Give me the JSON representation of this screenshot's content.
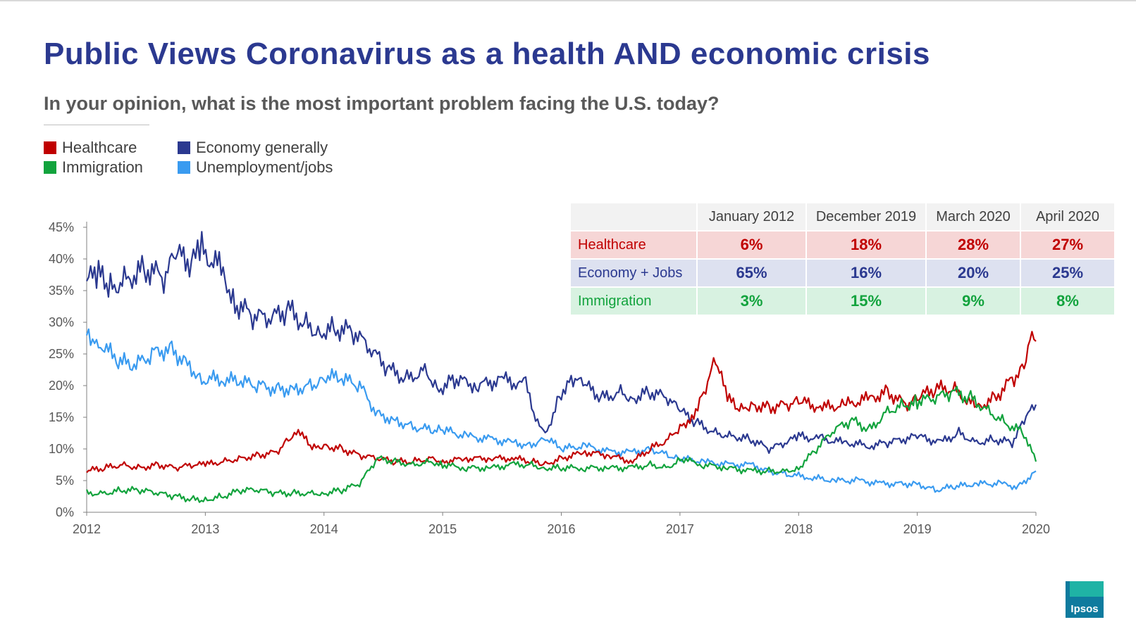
{
  "slide": {
    "title": "Public Views Coronavirus as a health AND economic crisis",
    "subtitle": "In your opinion, what is the most important problem facing the U.S. today?",
    "logo_text": "Ipsos"
  },
  "legend": [
    {
      "label": "Healthcare",
      "color": "#c00000"
    },
    {
      "label": "Economy generally",
      "color": "#2b3990"
    },
    {
      "label": "Immigration",
      "color": "#12a33d"
    },
    {
      "label": "Unemployment/jobs",
      "color": "#3a9bf0"
    }
  ],
  "summary_table": {
    "corner": "",
    "columns": [
      "January 2012",
      "December 2019",
      "March 2020",
      "April 2020"
    ],
    "rows": [
      {
        "label": "Healthcare",
        "values": [
          "6%",
          "18%",
          "28%",
          "27%"
        ]
      },
      {
        "label": "Economy + Jobs",
        "values": [
          "65%",
          "16%",
          "20%",
          "25%"
        ]
      },
      {
        "label": "Immigration",
        "values": [
          "3%",
          "15%",
          "9%",
          "8%"
        ]
      }
    ]
  },
  "chart_data": {
    "type": "line",
    "title": "",
    "xlabel": "",
    "ylabel": "",
    "ylim": [
      0,
      45
    ],
    "y_ticks": [
      0,
      5,
      10,
      15,
      20,
      25,
      30,
      35,
      40,
      45
    ],
    "y_tick_labels": [
      "0%",
      "5%",
      "10%",
      "15%",
      "20%",
      "25%",
      "30%",
      "35%",
      "40%",
      "45%"
    ],
    "x_ticks": [
      2012,
      2013,
      2014,
      2015,
      2016,
      2017,
      2018,
      2019,
      2020
    ],
    "x_tick_labels": [
      "2012",
      "2013",
      "2014",
      "2015",
      "2016",
      "2017",
      "2018",
      "2019",
      "2020"
    ],
    "xlim": [
      2012,
      2020
    ],
    "series": [
      {
        "name": "Economy generally",
        "color": "#2b3990",
        "x": [
          2012.0,
          2012.1,
          2012.2,
          2012.35,
          2012.5,
          2012.65,
          2012.75,
          2012.9,
          2012.97,
          2013.15,
          2013.25,
          2013.4,
          2013.55,
          2013.7,
          2013.85,
          2013.95,
          2014.1,
          2014.25,
          2014.4,
          2014.55,
          2014.7,
          2014.85,
          2014.97,
          2015.1,
          2015.3,
          2015.5,
          2015.7,
          2015.8,
          2015.88,
          2016.0,
          2016.1,
          2016.2,
          2016.35,
          2016.5,
          2016.6,
          2016.75,
          2016.9,
          2017.0,
          2017.15,
          2017.3,
          2017.45,
          2017.6,
          2017.75,
          2017.9,
          2018.0,
          2018.2,
          2018.4,
          2018.6,
          2018.75,
          2019.0,
          2019.2,
          2019.35,
          2019.5,
          2019.65,
          2019.8,
          2019.9,
          2020.0
        ],
        "values": [
          36.5,
          37.5,
          35.5,
          37.0,
          38.5,
          37.0,
          40.5,
          39.5,
          41.5,
          38.0,
          33.0,
          31.0,
          30.5,
          32.0,
          29.5,
          28.5,
          29.0,
          28.5,
          25.5,
          22.5,
          21.0,
          22.5,
          19.5,
          21.0,
          20.0,
          21.0,
          20.0,
          14.0,
          13.0,
          19.0,
          21.0,
          20.0,
          18.0,
          19.0,
          18.0,
          19.0,
          18.0,
          16.0,
          14.0,
          12.5,
          12.0,
          11.5,
          10.0,
          11.0,
          12.0,
          11.5,
          11.0,
          10.5,
          11.0,
          12.0,
          11.0,
          12.5,
          11.0,
          11.5,
          11.0,
          14.5,
          17.0
        ]
      },
      {
        "name": "Unemployment/jobs",
        "color": "#3a9bf0",
        "x": [
          2012.0,
          2012.1,
          2012.25,
          2012.4,
          2012.55,
          2012.7,
          2012.85,
          2012.97,
          2013.15,
          2013.3,
          2013.45,
          2013.6,
          2013.75,
          2013.9,
          2014.0,
          2014.15,
          2014.3,
          2014.45,
          2014.6,
          2014.75,
          2014.9,
          2015.0,
          2015.2,
          2015.4,
          2015.6,
          2015.75,
          2015.85,
          2016.0,
          2016.2,
          2016.4,
          2016.6,
          2016.75,
          2016.9,
          2017.0,
          2017.2,
          2017.4,
          2017.6,
          2017.75,
          2017.9,
          2018.1,
          2018.3,
          2018.5,
          2018.7,
          2019.0,
          2019.15,
          2019.3,
          2019.5,
          2019.7,
          2019.85,
          2020.0
        ],
        "values": [
          28.5,
          27.0,
          24.0,
          23.0,
          25.0,
          26.0,
          23.5,
          21.0,
          21.0,
          20.5,
          20.0,
          19.5,
          19.5,
          20.0,
          21.5,
          21.0,
          20.0,
          15.5,
          14.5,
          13.5,
          13.0,
          13.0,
          12.0,
          11.5,
          11.0,
          10.5,
          12.0,
          10.0,
          10.5,
          9.5,
          9.5,
          10.0,
          9.0,
          8.5,
          8.0,
          7.5,
          7.5,
          6.5,
          6.0,
          5.5,
          5.0,
          5.0,
          4.5,
          4.5,
          3.5,
          4.0,
          4.5,
          4.5,
          4.0,
          6.5
        ]
      },
      {
        "name": "Healthcare",
        "color": "#c00000",
        "x": [
          2012.0,
          2012.15,
          2012.3,
          2012.45,
          2012.6,
          2012.75,
          2012.9,
          2013.0,
          2013.15,
          2013.3,
          2013.45,
          2013.6,
          2013.7,
          2013.8,
          2013.9,
          2014.0,
          2014.15,
          2014.3,
          2014.45,
          2014.6,
          2014.75,
          2014.9,
          2015.0,
          2015.2,
          2015.4,
          2015.6,
          2015.75,
          2015.85,
          2016.0,
          2016.2,
          2016.4,
          2016.6,
          2016.75,
          2016.9,
          2017.0,
          2017.1,
          2017.2,
          2017.3,
          2017.4,
          2017.5,
          2017.6,
          2017.75,
          2017.9,
          2018.0,
          2018.2,
          2018.4,
          2018.6,
          2018.75,
          2018.9,
          2019.0,
          2019.15,
          2019.3,
          2019.5,
          2019.65,
          2019.8,
          2019.9,
          2019.95,
          2020.0
        ],
        "values": [
          6.5,
          7.0,
          7.5,
          7.0,
          7.5,
          7.0,
          7.5,
          7.5,
          8.0,
          8.5,
          9.0,
          9.5,
          11.5,
          12.5,
          10.0,
          10.5,
          10.0,
          9.0,
          8.5,
          8.0,
          8.0,
          8.5,
          8.0,
          8.5,
          8.5,
          8.5,
          8.0,
          7.5,
          8.5,
          9.5,
          9.0,
          8.0,
          10.0,
          11.5,
          13.5,
          15.0,
          19.0,
          24.0,
          18.0,
          16.0,
          17.0,
          16.5,
          17.0,
          17.5,
          16.5,
          17.0,
          18.0,
          19.0,
          17.0,
          18.0,
          19.5,
          19.5,
          16.5,
          18.0,
          21.0,
          23.0,
          28.0,
          27.0
        ]
      },
      {
        "name": "Immigration",
        "color": "#12a33d",
        "x": [
          2012.0,
          2012.15,
          2012.3,
          2012.45,
          2012.6,
          2012.75,
          2012.9,
          2013.0,
          2013.15,
          2013.3,
          2013.45,
          2013.6,
          2013.75,
          2013.9,
          2014.0,
          2014.15,
          2014.3,
          2014.45,
          2014.6,
          2014.75,
          2014.9,
          2015.0,
          2015.2,
          2015.4,
          2015.6,
          2015.75,
          2015.85,
          2016.0,
          2016.2,
          2016.4,
          2016.6,
          2016.75,
          2016.9,
          2017.0,
          2017.2,
          2017.4,
          2017.6,
          2017.75,
          2017.9,
          2018.0,
          2018.15,
          2018.3,
          2018.45,
          2018.6,
          2018.75,
          2018.9,
          2019.0,
          2019.15,
          2019.3,
          2019.45,
          2019.6,
          2019.75,
          2019.9,
          2020.0
        ],
        "values": [
          3.0,
          3.0,
          3.5,
          3.5,
          3.0,
          2.5,
          2.0,
          2.0,
          2.5,
          3.5,
          3.5,
          3.0,
          3.0,
          3.0,
          3.0,
          3.5,
          4.5,
          8.5,
          8.0,
          7.5,
          8.0,
          7.5,
          7.0,
          7.0,
          7.5,
          7.5,
          7.0,
          7.0,
          7.0,
          7.0,
          7.0,
          7.5,
          7.0,
          8.5,
          7.5,
          7.0,
          6.5,
          6.5,
          6.5,
          7.0,
          10.0,
          13.0,
          14.5,
          13.0,
          16.0,
          17.0,
          17.5,
          18.0,
          19.0,
          18.0,
          16.0,
          14.0,
          12.5,
          8.0
        ]
      }
    ]
  }
}
